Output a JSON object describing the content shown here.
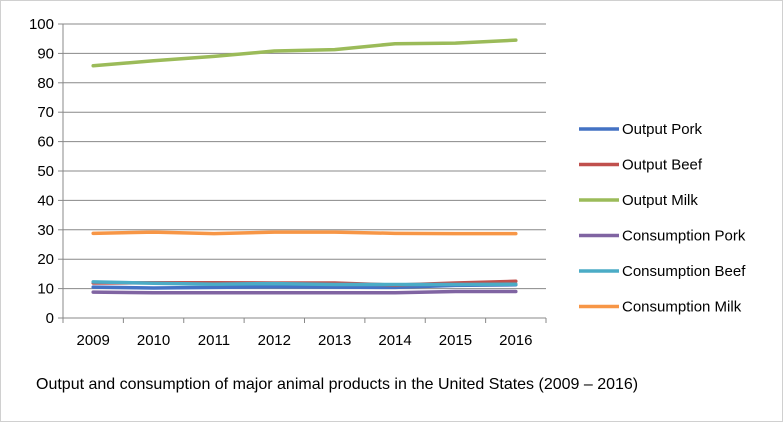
{
  "chart_data": {
    "type": "line",
    "title": "Output and consumption of major animal products in the United States (2009 – 2016)",
    "xlabel": "",
    "ylabel": "",
    "ylim": [
      0,
      100
    ],
    "yticks": [
      "0",
      "10",
      "20",
      "30",
      "40",
      "50",
      "60",
      "70",
      "80",
      "90",
      "100"
    ],
    "categories": [
      "2009",
      "2010",
      "2011",
      "2012",
      "2013",
      "2014",
      "2015",
      "2016"
    ],
    "grid": true,
    "legend_position": "right",
    "series": [
      {
        "name": "Output Pork",
        "color": "#4472C4",
        "values": [
          10.5,
          10.2,
          10.4,
          10.6,
          10.5,
          10.4,
          11.1,
          11.3
        ]
      },
      {
        "name": "Output Beef",
        "color": "#C0504D",
        "values": [
          11.9,
          12.0,
          12.0,
          11.9,
          11.9,
          11.2,
          11.9,
          12.5
        ]
      },
      {
        "name": "Output Milk",
        "color": "#9BBB59",
        "values": [
          85.8,
          87.5,
          89.0,
          90.8,
          91.3,
          93.3,
          93.5,
          94.5
        ]
      },
      {
        "name": "Consumption Pork",
        "color": "#8064A2",
        "values": [
          8.8,
          8.6,
          8.6,
          8.6,
          8.6,
          8.6,
          9.0,
          9.0
        ]
      },
      {
        "name": "Consumption Beef",
        "color": "#4BACC6",
        "values": [
          12.3,
          11.8,
          11.5,
          11.7,
          11.4,
          11.4,
          11.4,
          11.5
        ]
      },
      {
        "name": "Consumption Milk",
        "color": "#F79646",
        "values": [
          28.8,
          29.2,
          28.7,
          29.2,
          29.2,
          28.8,
          28.7,
          28.7
        ]
      }
    ]
  }
}
